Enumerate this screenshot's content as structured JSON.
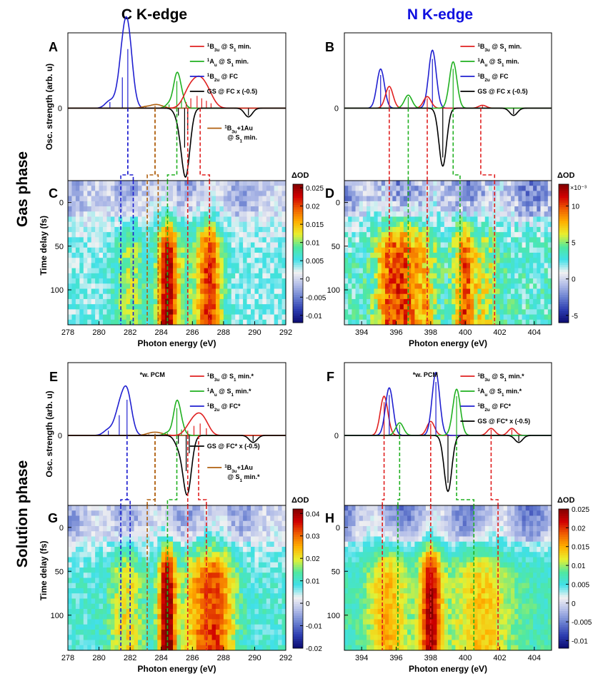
{
  "figure": {
    "col_titles": [
      "C K-edge",
      "N K-edge"
    ],
    "col_title_colors": [
      "#000000",
      "#1010e0"
    ],
    "row_titles": [
      "Gas phase",
      "Solution phase"
    ],
    "colormap": [
      "#0c0c70",
      "#2c3cb0",
      "#6a80d0",
      "#b2bde8",
      "#f2f2f2",
      "#40e0e8",
      "#50e8a0",
      "#e8f030",
      "#ffb000",
      "#f06000",
      "#d00000",
      "#800000"
    ]
  },
  "chart_data": [
    {
      "id": "A",
      "type": "line",
      "panel_label": "A",
      "x_range": [
        278,
        292
      ],
      "y_range": [
        -0.5,
        0.52
      ],
      "ylabel": "Osc. strength (arb. u)",
      "y_ticks": [
        0
      ],
      "y_tick_labels": [
        "0"
      ],
      "note": "",
      "legend": [
        {
          "name": "1B3u @ S1 min.",
          "color": "#e02020"
        },
        {
          "name": "1Au @ S1 min.",
          "color": "#20b020"
        },
        {
          "name": "1B2u @ FC",
          "color": "#2020d0"
        },
        {
          "name": "GS @ FC x (-0.5)",
          "color": "#000000"
        }
      ],
      "extra_legend": {
        "name_line1": "1B3u+1Au",
        "name_line2": "@ S1 min.",
        "color": "#b06010"
      },
      "series": [
        {
          "name": "1B2u @ FC",
          "color": "#2020d0",
          "width": 0.3,
          "sticks": [
            [
              280.7,
              0.05
            ],
            [
              281.5,
              0.25
            ],
            [
              281.85,
              0.48
            ]
          ]
        },
        {
          "name": "1B3u+1Au @ S1 min.",
          "color": "#b06010",
          "width": 0.3,
          "sticks": [
            [
              283.0,
              0.01
            ],
            [
              283.6,
              0.02
            ],
            [
              284.0,
              0.01
            ]
          ]
        },
        {
          "name": "1Au @ S1 min.",
          "color": "#20b020",
          "width": 0.22,
          "sticks": [
            [
              284.5,
              0.03
            ],
            [
              285.0,
              0.22
            ],
            [
              285.3,
              0.06
            ]
          ]
        },
        {
          "name": "1B3u @ S1 min.",
          "color": "#e02020",
          "width": 0.35,
          "sticks": [
            [
              285.6,
              0.05
            ],
            [
              285.9,
              0.08
            ],
            [
              286.3,
              0.1
            ],
            [
              286.6,
              0.08
            ],
            [
              286.9,
              0.06
            ],
            [
              287.2,
              0.04
            ]
          ]
        },
        {
          "name": "GS @ FC x (-0.5)",
          "color": "#000000",
          "width": 0.25,
          "sticks": [
            [
              285.1,
              -0.06
            ],
            [
              285.5,
              -0.32
            ],
            [
              285.7,
              -0.18
            ],
            [
              289.6,
              -0.06
            ]
          ]
        }
      ],
      "guide_lines": [
        {
          "x0": 281.85,
          "x1": 281.4,
          "color": "#2020d0"
        },
        {
          "x0": 281.85,
          "x1": 282.2,
          "color": "#2020d0"
        },
        {
          "x0": 283.6,
          "x1": 283.1,
          "color": "#b06010"
        },
        {
          "x0": 283.6,
          "x1": 283.8,
          "color": "#b06010"
        },
        {
          "x0": 285.0,
          "x1": 284.4,
          "color": "#20b020"
        },
        {
          "x0": 285.7,
          "x1": 285.7,
          "color": "#e02020"
        },
        {
          "x0": 286.5,
          "x1": 287.1,
          "color": "#e02020"
        }
      ]
    },
    {
      "id": "B",
      "type": "line",
      "panel_label": "B",
      "x_range": [
        393,
        405
      ],
      "y_range": [
        -0.5,
        0.52
      ],
      "ylabel": "",
      "y_ticks": [
        0
      ],
      "y_tick_labels": [
        "0"
      ],
      "note": "",
      "legend": [
        {
          "name": "1B3u @ S1 min.",
          "color": "#e02020"
        },
        {
          "name": "1Au @ S1 min.",
          "color": "#20b020"
        },
        {
          "name": "1B2u @ FC",
          "color": "#2020d0"
        },
        {
          "name": "GS @ FC x (-0.5)",
          "color": "#000000"
        }
      ],
      "extra_legend": null,
      "series": [
        {
          "name": "1B2u @ FC",
          "color": "#2020d0",
          "width": 0.22,
          "sticks": [
            [
              395.1,
              0.27
            ],
            [
              398.1,
              0.4
            ]
          ]
        },
        {
          "name": "1B3u @ S1 min.",
          "color": "#e02020",
          "width": 0.22,
          "sticks": [
            [
              395.6,
              0.15
            ],
            [
              397.8,
              0.08
            ],
            [
              401.0,
              0.02
            ]
          ]
        },
        {
          "name": "1Au @ S1 min.",
          "color": "#20b020",
          "width": 0.22,
          "sticks": [
            [
              396.7,
              0.09
            ],
            [
              399.3,
              0.32
            ]
          ]
        },
        {
          "name": "GS @ FC x (-0.5)",
          "color": "#000000",
          "width": 0.22,
          "sticks": [
            [
              398.7,
              -0.4
            ],
            [
              402.8,
              -0.05
            ]
          ]
        }
      ],
      "guide_lines": [
        {
          "x0": 395.6,
          "x1": 395.6,
          "color": "#e02020"
        },
        {
          "x0": 396.7,
          "x1": 396.7,
          "color": "#20b020"
        },
        {
          "x0": 397.8,
          "x1": 397.8,
          "color": "#e02020"
        },
        {
          "x0": 399.3,
          "x1": 399.7,
          "color": "#20b020"
        },
        {
          "x0": 400.9,
          "x1": 401.7,
          "color": "#e02020"
        }
      ]
    },
    {
      "id": "C",
      "type": "heatmap",
      "panel_label": "C",
      "x_range": [
        278,
        292
      ],
      "y_range": [
        140,
        -25
      ],
      "x_ticks": [
        278,
        280,
        282,
        284,
        286,
        288,
        290,
        292
      ],
      "y_ticks": [
        0,
        50,
        100
      ],
      "xlabel": "Photon energy (eV)",
      "ylabel": "Time delay (fs)",
      "colorbar_title": "ΔOD",
      "colorbar_exponent": "",
      "clim": [
        -0.012,
        0.026
      ],
      "colorbar_ticks": [
        0.025,
        0.02,
        0.015,
        0.01,
        0.005,
        0,
        -0.005,
        -0.01
      ],
      "colorbar_tick_labels": [
        "0.025",
        "0.02",
        "0.015",
        "0.01",
        "0.005",
        "0",
        "-0.005",
        "-0.01"
      ],
      "peaks": [
        {
          "x": 282.0,
          "w": 0.8,
          "a": 0.007
        },
        {
          "x": 284.4,
          "w": 0.45,
          "a": 0.02
        },
        {
          "x": 287.1,
          "w": 0.6,
          "a": 0.017
        },
        {
          "x": 285.5,
          "w": 0.7,
          "a": 0.004
        }
      ],
      "base": 0.004,
      "neg_band": -0.003,
      "noise": 0.0025,
      "seed": 11,
      "guide_lines": [
        {
          "x": 281.4,
          "color": "#2020d0"
        },
        {
          "x": 282.2,
          "color": "#2020d0"
        },
        {
          "x": 283.1,
          "color": "#b06010"
        },
        {
          "x": 283.8,
          "color": "#b06010"
        },
        {
          "x": 284.4,
          "color": "#20b020"
        },
        {
          "x": 285.7,
          "color": "#e02020"
        },
        {
          "x": 287.1,
          "color": "#e02020"
        }
      ]
    },
    {
      "id": "D",
      "type": "heatmap",
      "panel_label": "D",
      "x_range": [
        393,
        405
      ],
      "y_range": [
        140,
        -25
      ],
      "x_ticks": [
        394,
        396,
        398,
        400,
        402,
        404
      ],
      "y_ticks": [
        0,
        50,
        100
      ],
      "xlabel": "Photon energy (eV)",
      "ylabel": "",
      "colorbar_title": "ΔOD",
      "colorbar_exponent": "×10⁻³",
      "clim": [
        -6,
        13
      ],
      "colorbar_ticks": [
        10,
        5,
        0,
        -5
      ],
      "colorbar_tick_labels": [
        "10",
        "5",
        "0",
        "-5"
      ],
      "peaks": [
        {
          "x": 395.6,
          "w": 0.6,
          "a": 6
        },
        {
          "x": 396.6,
          "w": 0.5,
          "a": 5
        },
        {
          "x": 397.7,
          "w": 0.5,
          "a": 4
        },
        {
          "x": 399.9,
          "w": 0.4,
          "a": 6
        },
        {
          "x": 401.0,
          "w": 0.7,
          "a": 3
        }
      ],
      "base": 3,
      "neg_band": -2.5,
      "noise": 1.8,
      "seed": 23,
      "guide_lines": [
        {
          "x": 395.6,
          "color": "#e02020"
        },
        {
          "x": 396.7,
          "color": "#20b020"
        },
        {
          "x": 397.8,
          "color": "#e02020"
        },
        {
          "x": 399.7,
          "color": "#20b020"
        },
        {
          "x": 401.7,
          "color": "#e02020"
        }
      ]
    },
    {
      "id": "E",
      "type": "line",
      "panel_label": "E",
      "x_range": [
        278,
        292
      ],
      "y_range": [
        -0.5,
        0.52
      ],
      "ylabel": "Osc. strength (arb. u)",
      "y_ticks": [
        0
      ],
      "y_tick_labels": [
        "0"
      ],
      "note": "*w. PCM",
      "legend": [
        {
          "name": "1B3u @ S1 min.*",
          "color": "#e02020"
        },
        {
          "name": "1Au @ S1 min.*",
          "color": "#20b020"
        },
        {
          "name": "1B2u @ FC*",
          "color": "#2020d0"
        }
      ],
      "extra_legend2": {
        "name": "GS @ FC* x (-0.5)",
        "color": "#000000"
      },
      "extra_legend": {
        "name_line1": "1B3u+1Au",
        "name_line2": "@ S1 min.*",
        "color": "#b06010"
      },
      "series": [
        {
          "name": "1B2u @ FC*",
          "color": "#2020d0",
          "width": 0.3,
          "sticks": [
            [
              280.6,
              0.04
            ],
            [
              281.3,
              0.17
            ],
            [
              281.8,
              0.3
            ]
          ]
        },
        {
          "name": "1B3u+1Au @ S1 min.*",
          "color": "#b06010",
          "width": 0.3,
          "sticks": [
            [
              283.2,
              0.01
            ],
            [
              283.6,
              0.015
            ],
            [
              284.0,
              0.01
            ]
          ]
        },
        {
          "name": "1Au @ S1 min.*",
          "color": "#20b020",
          "width": 0.22,
          "sticks": [
            [
              284.4,
              0.02
            ],
            [
              285.0,
              0.23
            ],
            [
              285.3,
              0.05
            ]
          ]
        },
        {
          "name": "1B3u @ S1 min.*",
          "color": "#e02020",
          "width": 0.3,
          "sticks": [
            [
              285.7,
              0.04
            ],
            [
              286.1,
              0.08
            ],
            [
              286.5,
              0.1
            ],
            [
              286.9,
              0.06
            ]
          ]
        },
        {
          "name": "GS @ FC* x (-0.5)",
          "color": "#000000",
          "width": 0.25,
          "sticks": [
            [
              285.1,
              -0.07
            ],
            [
              285.6,
              -0.3
            ],
            [
              285.8,
              -0.15
            ],
            [
              289.9,
              -0.05
            ]
          ]
        }
      ],
      "guide_lines": [
        {
          "x0": 281.8,
          "x1": 281.4,
          "color": "#2020d0"
        },
        {
          "x0": 281.8,
          "x1": 282.0,
          "color": "#2020d0"
        },
        {
          "x0": 283.6,
          "x1": 283.1,
          "color": "#b06010"
        },
        {
          "x0": 283.6,
          "x1": 283.6,
          "color": "#b06010"
        },
        {
          "x0": 285.0,
          "x1": 284.4,
          "color": "#20b020"
        },
        {
          "x0": 285.7,
          "x1": 285.7,
          "color": "#e02020"
        },
        {
          "x0": 286.4,
          "x1": 286.9,
          "color": "#e02020"
        }
      ]
    },
    {
      "id": "F",
      "type": "line",
      "panel_label": "F",
      "x_range": [
        393,
        405
      ],
      "y_range": [
        -0.5,
        0.52
      ],
      "ylabel": "",
      "y_ticks": [
        0
      ],
      "y_tick_labels": [
        "0"
      ],
      "note": "*w. PCM",
      "legend": [
        {
          "name": "1B3u @ S1 min.*",
          "color": "#e02020"
        },
        {
          "name": "1Au @ S1 min.*",
          "color": "#20b020"
        },
        {
          "name": "1B2u @ FC*",
          "color": "#2020d0"
        },
        {
          "name": "GS @ FC* x (-0.5)",
          "color": "#000000"
        }
      ],
      "extra_legend": null,
      "series": [
        {
          "name": "1B3u @ S1 min.*",
          "color": "#e02020",
          "width": 0.22,
          "sticks": [
            [
              395.3,
              0.28
            ],
            [
              398.0,
              0.1
            ],
            [
              401.5,
              0.05
            ],
            [
              402.7,
              0.05
            ]
          ]
        },
        {
          "name": "1B2u @ FC*",
          "color": "#2020d0",
          "width": 0.22,
          "sticks": [
            [
              395.6,
              0.34
            ],
            [
              398.3,
              0.45
            ]
          ]
        },
        {
          "name": "1Au @ S1 min.*",
          "color": "#20b020",
          "width": 0.22,
          "sticks": [
            [
              396.2,
              0.09
            ],
            [
              399.5,
              0.33
            ]
          ]
        },
        {
          "name": "GS @ FC* x (-0.5)",
          "color": "#000000",
          "width": 0.22,
          "sticks": [
            [
              399.0,
              -0.4
            ],
            [
              403.1,
              -0.05
            ]
          ]
        }
      ],
      "guide_lines": [
        {
          "x0": 395.3,
          "x1": 395.2,
          "color": "#e02020"
        },
        {
          "x0": 396.2,
          "x1": 396.1,
          "color": "#20b020"
        },
        {
          "x0": 398.0,
          "x1": 398.0,
          "color": "#e02020"
        },
        {
          "x0": 399.5,
          "x1": 400.5,
          "color": "#20b020"
        },
        {
          "x0": 401.5,
          "x1": 401.9,
          "color": "#e02020"
        }
      ]
    },
    {
      "id": "G",
      "type": "heatmap",
      "panel_label": "G",
      "x_range": [
        278,
        292
      ],
      "y_range": [
        140,
        -25
      ],
      "x_ticks": [
        278,
        280,
        282,
        284,
        286,
        288,
        290,
        292
      ],
      "y_ticks": [
        0,
        50,
        100
      ],
      "xlabel": "Photon energy (eV)",
      "ylabel": "Time delay (fs)",
      "colorbar_title": "ΔOD",
      "colorbar_exponent": "",
      "clim": [
        -0.02,
        0.042
      ],
      "colorbar_ticks": [
        0.04,
        0.03,
        0.02,
        0.01,
        0,
        -0.01,
        -0.02
      ],
      "colorbar_tick_labels": [
        "0.04",
        "0.03",
        "0.02",
        "0.01",
        "0",
        "-0.01",
        "-0.02"
      ],
      "peaks": [
        {
          "x": 281.8,
          "w": 0.8,
          "a": 0.012
        },
        {
          "x": 284.4,
          "w": 0.4,
          "a": 0.034
        },
        {
          "x": 287.4,
          "w": 0.9,
          "a": 0.024
        },
        {
          "x": 286.0,
          "w": 0.5,
          "a": 0.008
        }
      ],
      "base": 0.009,
      "neg_band": -0.006,
      "noise": 0.004,
      "seed": 37,
      "guide_lines": [
        {
          "x": 281.4,
          "color": "#2020d0"
        },
        {
          "x": 282.0,
          "color": "#2020d0"
        },
        {
          "x": 283.1,
          "color": "#b06010"
        },
        {
          "x": 284.4,
          "color": "#20b020"
        },
        {
          "x": 285.7,
          "color": "#e02020"
        },
        {
          "x": 286.9,
          "color": "#e02020"
        }
      ]
    },
    {
      "id": "H",
      "type": "heatmap",
      "panel_label": "H",
      "x_range": [
        393,
        405
      ],
      "y_range": [
        140,
        -25
      ],
      "x_ticks": [
        394,
        396,
        398,
        400,
        402,
        404
      ],
      "y_ticks": [
        0,
        50,
        100
      ],
      "xlabel": "Photon energy (eV)",
      "ylabel": "",
      "colorbar_title": "ΔOD",
      "colorbar_exponent": "",
      "clim": [
        -0.012,
        0.025
      ],
      "colorbar_ticks": [
        0.025,
        0.02,
        0.015,
        0.01,
        0.005,
        0,
        -0.005,
        -0.01
      ],
      "colorbar_tick_labels": [
        "0.025",
        "0.02",
        "0.015",
        "0.01",
        "0.005",
        "0",
        "-0.005",
        "-0.01"
      ],
      "peaks": [
        {
          "x": 395.5,
          "w": 0.8,
          "a": 0.008
        },
        {
          "x": 398.0,
          "w": 0.45,
          "a": 0.016
        },
        {
          "x": 400.9,
          "w": 1.2,
          "a": 0.007
        }
      ],
      "base": 0.007,
      "neg_band": -0.006,
      "noise": 0.0018,
      "seed": 53,
      "guide_lines": [
        {
          "x": 395.2,
          "color": "#e02020"
        },
        {
          "x": 396.1,
          "color": "#20b020"
        },
        {
          "x": 398.0,
          "color": "#e02020"
        },
        {
          "x": 400.5,
          "color": "#20b020"
        },
        {
          "x": 401.9,
          "color": "#e02020"
        }
      ]
    }
  ]
}
